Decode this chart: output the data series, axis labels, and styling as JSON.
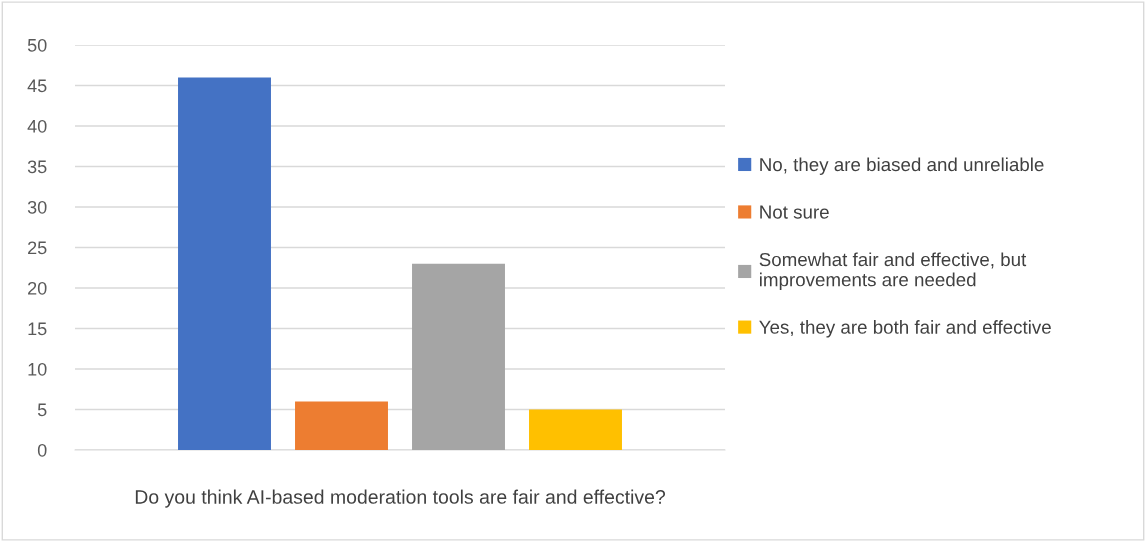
{
  "chart_data": {
    "type": "bar",
    "xlabel": "Do you think AI-based moderation tools are fair and effective?",
    "categories": [
      null
    ],
    "series": [
      {
        "name": "No, they are biased and unreliable",
        "color": "#4472c4",
        "values": [
          46
        ]
      },
      {
        "name": "Not sure",
        "color": "#ed7d31",
        "values": [
          6
        ]
      },
      {
        "name": "Somewhat fair and effective, but\nimprovements are needed",
        "color": "#a5a5a5",
        "values": [
          23
        ]
      },
      {
        "name": "Yes, they are both fair and effective",
        "color": "#ffc000",
        "values": [
          5
        ]
      }
    ],
    "ylim": [
      0,
      50
    ],
    "yticks": [
      0,
      5,
      10,
      15,
      20,
      25,
      30,
      35,
      40,
      45,
      50
    ],
    "grid": "y",
    "legend": "right"
  }
}
